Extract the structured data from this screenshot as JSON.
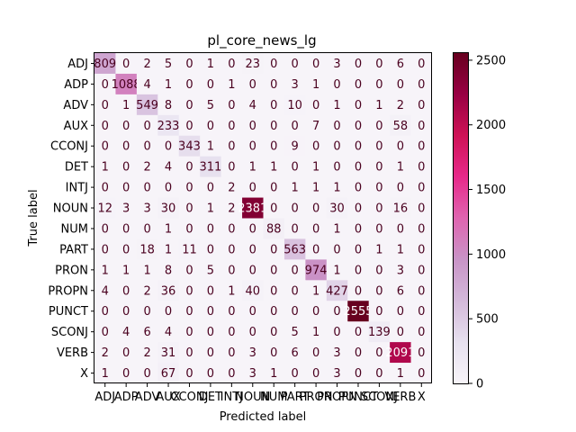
{
  "chart_data": {
    "type": "heatmap",
    "title": "pl_core_news_lg",
    "xlabel": "Predicted label",
    "ylabel": "True label",
    "labels": [
      "ADJ",
      "ADP",
      "ADV",
      "AUX",
      "CCONJ",
      "DET",
      "INTJ",
      "NOUN",
      "NUM",
      "PART",
      "PRON",
      "PROPN",
      "PUNCT",
      "SCONJ",
      "VERB",
      "X"
    ],
    "matrix": [
      [
        809,
        0,
        2,
        5,
        0,
        1,
        0,
        23,
        0,
        0,
        0,
        3,
        0,
        0,
        6,
        0
      ],
      [
        0,
        1088,
        4,
        1,
        0,
        0,
        1,
        0,
        0,
        3,
        1,
        0,
        0,
        0,
        0,
        0
      ],
      [
        0,
        1,
        549,
        8,
        0,
        5,
        0,
        4,
        0,
        10,
        0,
        1,
        0,
        1,
        2,
        0
      ],
      [
        0,
        0,
        0,
        233,
        0,
        0,
        0,
        0,
        0,
        0,
        7,
        0,
        0,
        0,
        58,
        0
      ],
      [
        0,
        0,
        0,
        0,
        343,
        1,
        0,
        0,
        0,
        9,
        0,
        0,
        0,
        0,
        0,
        0
      ],
      [
        1,
        0,
        2,
        4,
        0,
        311,
        0,
        1,
        1,
        0,
        1,
        0,
        0,
        0,
        1,
        0
      ],
      [
        0,
        0,
        0,
        0,
        0,
        0,
        2,
        0,
        0,
        1,
        1,
        1,
        0,
        0,
        0,
        0
      ],
      [
        12,
        3,
        3,
        30,
        0,
        1,
        2,
        2381,
        0,
        0,
        0,
        30,
        0,
        0,
        16,
        0
      ],
      [
        0,
        0,
        0,
        1,
        0,
        0,
        0,
        0,
        88,
        0,
        0,
        1,
        0,
        0,
        0,
        0
      ],
      [
        0,
        0,
        18,
        1,
        11,
        0,
        0,
        0,
        0,
        563,
        0,
        0,
        0,
        1,
        1,
        0
      ],
      [
        1,
        1,
        1,
        8,
        0,
        5,
        0,
        0,
        0,
        0,
        974,
        1,
        0,
        0,
        3,
        0
      ],
      [
        4,
        0,
        2,
        36,
        0,
        0,
        1,
        40,
        0,
        0,
        1,
        427,
        0,
        0,
        6,
        0
      ],
      [
        0,
        0,
        0,
        0,
        0,
        0,
        0,
        0,
        0,
        0,
        0,
        0,
        2555,
        0,
        0,
        0
      ],
      [
        0,
        4,
        6,
        4,
        0,
        0,
        0,
        0,
        0,
        5,
        1,
        0,
        0,
        139,
        0,
        0
      ],
      [
        2,
        0,
        2,
        31,
        0,
        0,
        0,
        3,
        0,
        6,
        0,
        3,
        0,
        0,
        2091,
        0
      ],
      [
        1,
        0,
        0,
        67,
        0,
        0,
        0,
        3,
        1,
        0,
        0,
        3,
        0,
        0,
        1,
        0
      ]
    ],
    "colorbar": {
      "colormap": "PuRd",
      "min": 0,
      "max": 2555,
      "ticks": [
        0,
        500,
        1000,
        1500,
        2000,
        2500
      ]
    },
    "grid": false
  }
}
